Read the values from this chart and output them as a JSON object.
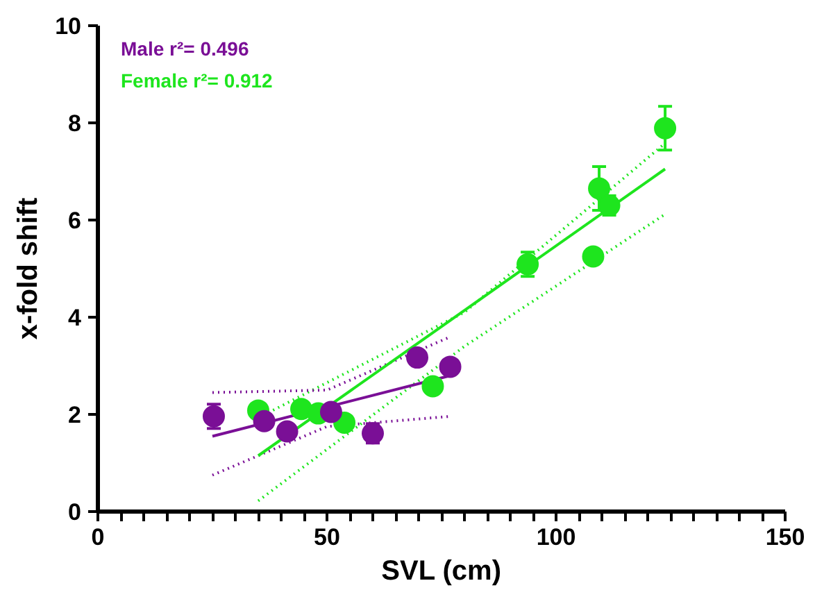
{
  "chart_data": {
    "type": "scatter",
    "xlabel": "SVL (cm)",
    "ylabel": "x-fold shift",
    "xlim": [
      0,
      150
    ],
    "ylim": [
      0,
      10
    ],
    "xticks": [
      0,
      {
        "value": 5,
        "label": null
      },
      {
        "value": 10,
        "label": null
      },
      {
        "value": 15,
        "label": null
      },
      {
        "value": 20,
        "label": null
      },
      {
        "value": 25,
        "label": null
      },
      {
        "value": 30,
        "label": null
      },
      {
        "value": 35,
        "label": null
      },
      {
        "value": 40,
        "label": null
      },
      {
        "value": 45,
        "label": null
      },
      50,
      {
        "value": 55,
        "label": null
      },
      {
        "value": 60,
        "label": null
      },
      {
        "value": 65,
        "label": null
      },
      {
        "value": 70,
        "label": null
      },
      {
        "value": 75,
        "label": null
      },
      {
        "value": 80,
        "label": null
      },
      {
        "value": 85,
        "label": null
      },
      {
        "value": 90,
        "label": null
      },
      {
        "value": 95,
        "label": null
      },
      100,
      {
        "value": 105,
        "label": null
      },
      {
        "value": 110,
        "label": null
      },
      {
        "value": 115,
        "label": null
      },
      {
        "value": 120,
        "label": null
      },
      {
        "value": 125,
        "label": null
      },
      {
        "value": 130,
        "label": null
      },
      {
        "value": 135,
        "label": null
      },
      {
        "value": 140,
        "label": null
      },
      {
        "value": 145,
        "label": null
      },
      150
    ],
    "yticks": [
      0,
      2,
      4,
      6,
      8,
      10
    ],
    "grid": false,
    "marker": "circle",
    "annotations": [
      "Male r²= 0.496",
      "Female r²= 0.912"
    ],
    "series": [
      {
        "color": "#7a0f96",
        "x": [
          25.3,
          36.3,
          41.3,
          50.9,
          60,
          69.7,
          76.9
        ],
        "values": [
          1.96,
          1.86,
          1.65,
          2.05,
          1.61,
          3.17,
          2.98
        ],
        "errors": [
          0.25,
          null,
          null,
          null,
          0.2,
          null,
          null
        ]
      },
      {
        "color": "#1ee51e",
        "x": [
          35,
          44.4,
          48.1,
          53.8,
          73.1,
          93.8,
          108.1,
          109.4,
          111.6,
          123.8
        ],
        "values": [
          2.08,
          2.11,
          2.02,
          1.83,
          2.58,
          5.09,
          5.25,
          6.65,
          6.3,
          7.89
        ],
        "errors": [
          null,
          null,
          null,
          null,
          null,
          0.25,
          0.15,
          0.45,
          0.2,
          0.45
        ]
      },
      {
        "type": "line",
        "marker": "none",
        "line_style": "solid",
        "color": "#7a0f96",
        "x": [
          25,
          77
        ],
        "values": [
          1.55,
          2.8
        ]
      },
      {
        "type": "line",
        "marker": "none",
        "line_style": "solid",
        "color": "#1ee51e",
        "x": [
          35,
          123.8
        ],
        "values": [
          1.15,
          7.05
        ]
      },
      {
        "type": "line",
        "marker": "none",
        "line_style": "dotted",
        "color": "#7a0f96",
        "x": [
          25,
          50,
          77
        ],
        "values": [
          2.45,
          2.5,
          3.6
        ]
      },
      {
        "type": "line",
        "marker": "none",
        "line_style": "dotted",
        "color": "#7a0f96",
        "x": [
          25,
          50,
          77
        ],
        "values": [
          0.75,
          1.75,
          1.96
        ]
      },
      {
        "type": "line",
        "marker": "none",
        "line_style": "dotted",
        "color": "#1ee51e",
        "x": [
          35,
          80,
          123.8
        ],
        "values": [
          1.93,
          4.1,
          7.58
        ]
      },
      {
        "type": "line",
        "marker": "none",
        "line_style": "dotted",
        "color": "#1ee51e",
        "x": [
          35,
          80,
          123.8
        ],
        "values": [
          0.22,
          3.4,
          6.12
        ]
      }
    ]
  }
}
